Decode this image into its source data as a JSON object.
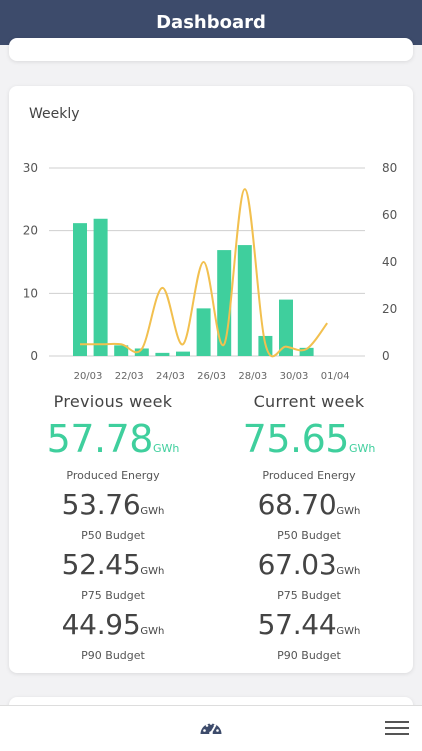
{
  "header": {
    "title": "Dashboard"
  },
  "weekly_card": {
    "title": "Weekly",
    "previous": {
      "heading": "Previous week",
      "produced_value": "57.78",
      "produced_unit": "GWh",
      "produced_label": "Produced Energy",
      "budgets": [
        {
          "value": "53.76",
          "unit": "GWh",
          "label": "P50 Budget"
        },
        {
          "value": "52.45",
          "unit": "GWh",
          "label": "P75 Budget"
        },
        {
          "value": "44.95",
          "unit": "GWh",
          "label": "P90 Budget"
        }
      ]
    },
    "current": {
      "heading": "Current week",
      "produced_value": "75.65",
      "produced_unit": "GWh",
      "produced_label": "Produced Energy",
      "budgets": [
        {
          "value": "68.70",
          "unit": "GWh",
          "label": "P50 Budget"
        },
        {
          "value": "67.03",
          "unit": "GWh",
          "label": "P75 Budget"
        },
        {
          "value": "57.44",
          "unit": "GWh",
          "label": "P90 Budget"
        }
      ]
    }
  },
  "chart_data": {
    "type": "bar",
    "x": [
      "20/03",
      "21/03",
      "22/03",
      "23/03",
      "24/03",
      "25/03",
      "26/03",
      "27/03",
      "28/03",
      "29/03",
      "30/03",
      "31/03",
      "01/04"
    ],
    "tick_labels": [
      "20/03",
      "22/03",
      "24/03",
      "26/03",
      "28/03",
      "30/03",
      "01/04"
    ],
    "series": [
      {
        "type": "bar",
        "axis": "left",
        "values": [
          21.2,
          21.9,
          1.7,
          1.2,
          0.5,
          0.7,
          7.6,
          16.9,
          17.7,
          3.2,
          9.0,
          1.3,
          null
        ]
      },
      {
        "type": "line",
        "axis": "right",
        "values": [
          5,
          5,
          5,
          3,
          29,
          5,
          40,
          5,
          71,
          5,
          4,
          3,
          14
        ]
      }
    ],
    "y_left": {
      "ticks": [
        0,
        10,
        20,
        30
      ],
      "ylim": [
        0,
        30
      ]
    },
    "y_right": {
      "ticks": [
        0,
        20,
        40,
        60,
        80
      ],
      "ylim": [
        0,
        80
      ]
    },
    "grid": true,
    "colors": {
      "bar": "#3fcf9d",
      "line": "#f2c04f",
      "grid": "#cfcfcf"
    }
  },
  "bottom_nav": {
    "icons": [
      "gauge-icon",
      "menu-icon"
    ]
  }
}
